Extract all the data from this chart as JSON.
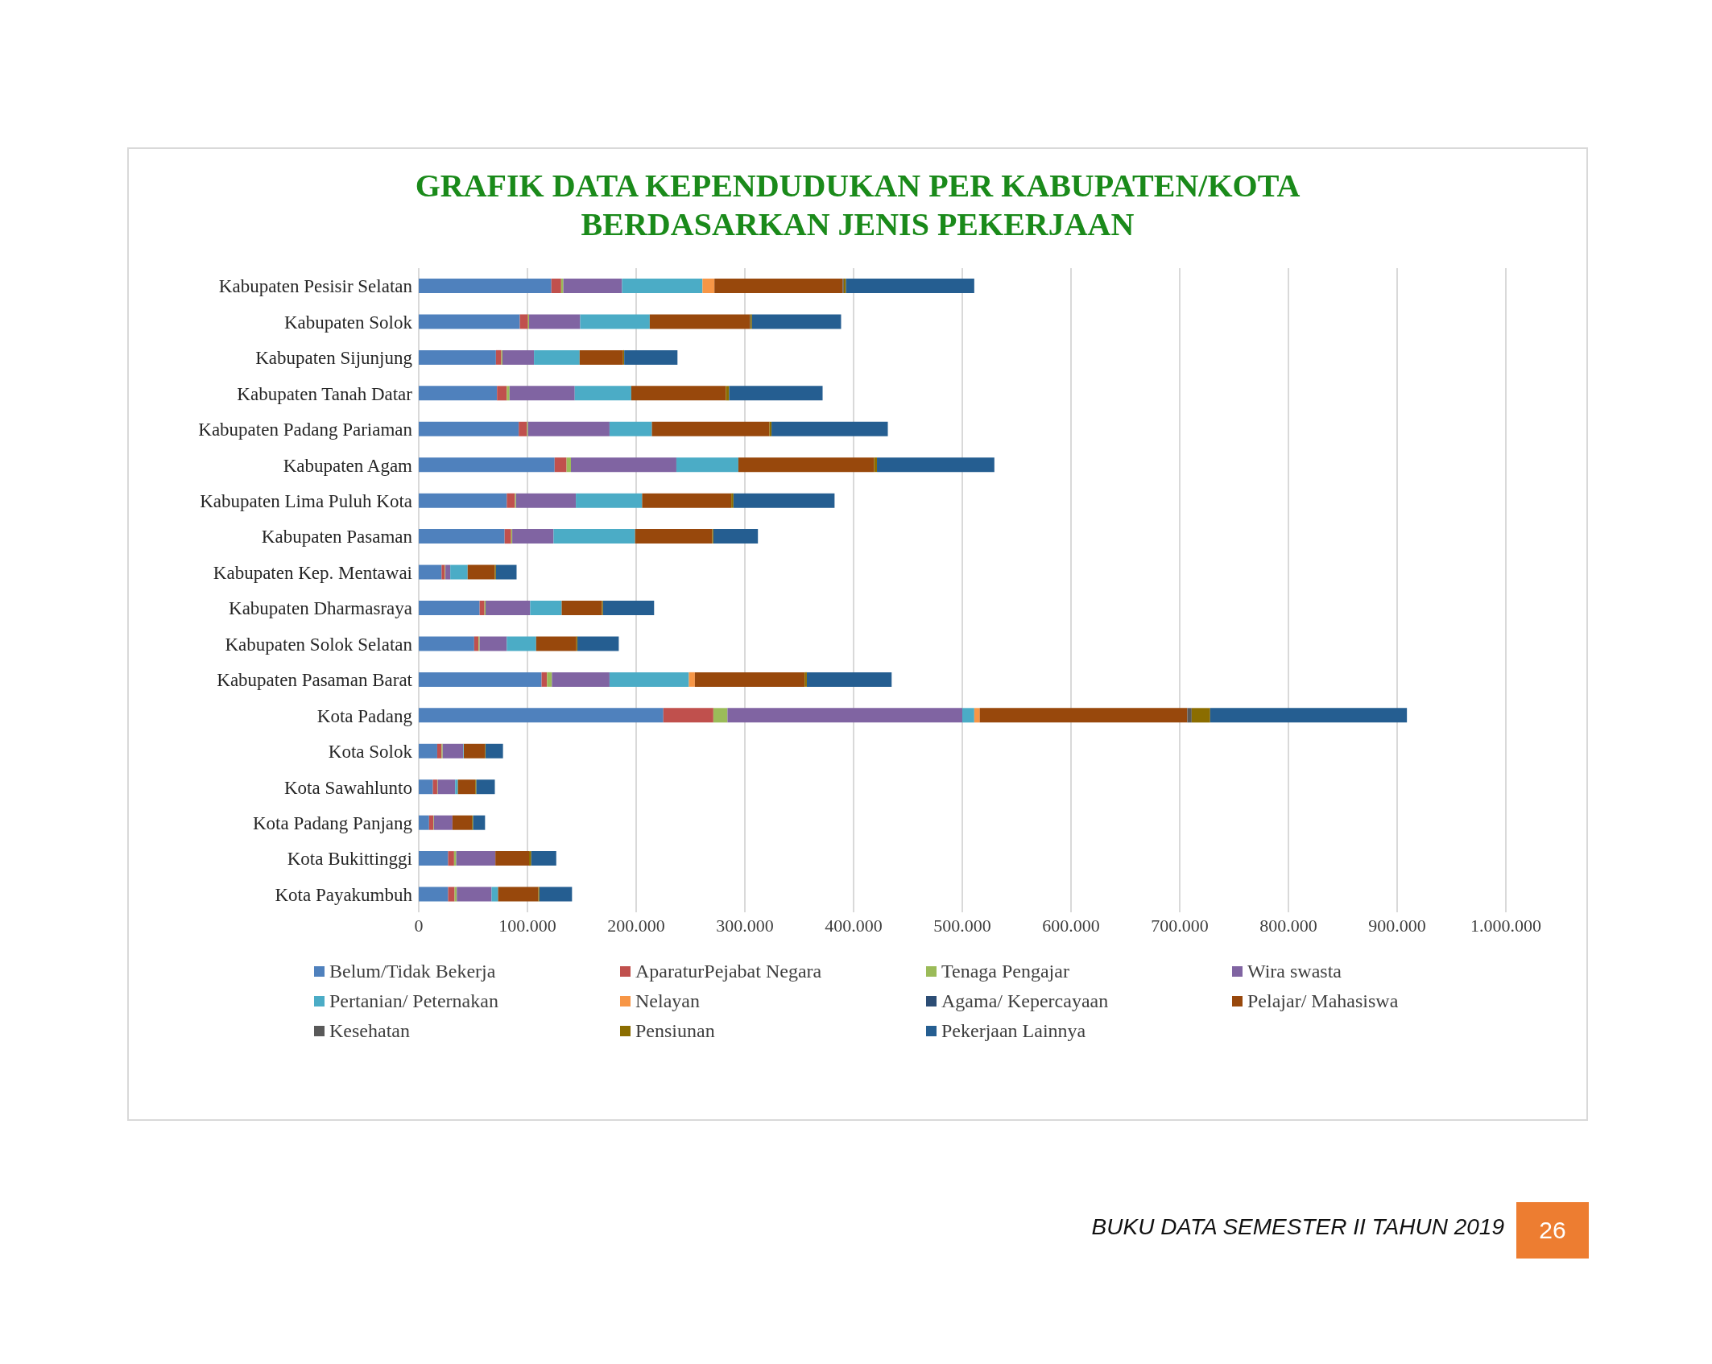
{
  "chart_data": {
    "type": "bar",
    "orientation": "horizontal",
    "stacked": true,
    "title": "GRAFIK DATA KEPENDUDUKAN PER KABUPATEN/KOTA\nBERDASARKAN JENIS PEKERJAAN",
    "categories": [
      "Kabupaten Pesisir Selatan",
      "Kabupaten Solok",
      "Kabupaten Sijunjung",
      "Kabupaten Tanah Datar",
      "Kabupaten Padang Pariaman",
      "Kabupaten Agam",
      "Kabupaten Lima Puluh Kota",
      "Kabupaten Pasaman",
      "Kabupaten Kep. Mentawai",
      "Kabupaten Dharmasraya",
      "Kabupaten Solok Selatan",
      "Kabupaten Pasaman Barat",
      "Kota Padang",
      "Kota Solok",
      "Kota Sawahlunto",
      "Kota Padang Panjang",
      "Kota Bukittinggi",
      "Kota Payakumbuh"
    ],
    "series": [
      {
        "name": "Belum/Tidak Bekerja",
        "color": "#4f81bd",
        "values": [
          122000,
          93000,
          71000,
          72000,
          92000,
          125000,
          81000,
          79000,
          21000,
          56000,
          51000,
          113000,
          225000,
          17000,
          13000,
          9500,
          27000,
          27000
        ]
      },
      {
        "name": "AparaturPejabat Negara",
        "color": "#c0504d",
        "values": [
          9000,
          7500,
          5000,
          9000,
          7500,
          11000,
          7500,
          6000,
          3000,
          4500,
          4000,
          5000,
          46000,
          4000,
          4000,
          4000,
          5500,
          6000
        ]
      },
      {
        "name": "Tenaga Pengajar",
        "color": "#9bbb59",
        "values": [
          2000,
          1000,
          1000,
          2500,
          1000,
          4000,
          1000,
          1000,
          500,
          1000,
          1000,
          4500,
          13000,
          1000,
          500,
          500,
          2000,
          2000
        ]
      },
      {
        "name": "Wira swasta",
        "color": "#8064a2",
        "values": [
          54000,
          47000,
          29000,
          60000,
          75000,
          97000,
          55000,
          38000,
          4500,
          41000,
          25000,
          53000,
          216000,
          19000,
          16000,
          17000,
          36000,
          32000
        ]
      },
      {
        "name": "Pertanian/ Peternakan",
        "color": "#4bacc6",
        "values": [
          74000,
          64000,
          42000,
          52000,
          39000,
          57000,
          61000,
          75000,
          16000,
          29000,
          27000,
          73000,
          11000,
          500,
          2500,
          0,
          0,
          6000
        ]
      },
      {
        "name": "Nelayan",
        "color": "#f79646",
        "values": [
          11000,
          0,
          0,
          0,
          0,
          0,
          0,
          0,
          0,
          0,
          0,
          5500,
          5000,
          0,
          0,
          0,
          0,
          0
        ]
      },
      {
        "name": "Agama/ Kepercayaan",
        "color": "#2c4d75",
        "values": [
          0,
          0,
          0,
          0,
          0,
          0,
          0,
          0,
          0,
          0,
          0,
          0,
          0,
          0,
          0,
          0,
          0,
          0
        ]
      },
      {
        "name": "Pelajar/ Mahasiswa",
        "color": "#98480c",
        "values": [
          118000,
          92000,
          40000,
          87000,
          108000,
          125000,
          82000,
          71000,
          25000,
          37000,
          37000,
          101000,
          191000,
          19500,
          16000,
          18000,
          31000,
          37000
        ]
      },
      {
        "name": "Kesehatan",
        "color": "#595959",
        "values": [
          1000,
          500,
          0,
          0,
          0,
          0,
          0,
          0,
          0,
          0,
          0,
          0,
          4000,
          0,
          0,
          0,
          0,
          0
        ]
      },
      {
        "name": "Pensiunan",
        "color": "#8b6d00",
        "values": [
          2000,
          1500,
          1000,
          3000,
          2000,
          2500,
          2000,
          1000,
          1000,
          1000,
          1000,
          2000,
          17000,
          500,
          1000,
          1000,
          2000,
          1000
        ]
      },
      {
        "name": "Pekerjaan Lainnya",
        "color": "#255e91",
        "values": [
          118000,
          82000,
          49000,
          86000,
          107000,
          108000,
          93000,
          41000,
          19000,
          47000,
          38000,
          78000,
          181000,
          16000,
          17000,
          11000,
          23000,
          30000
        ]
      }
    ],
    "xlim": [
      0,
      1000000
    ],
    "xticks": [
      0,
      {
        "value": 100000,
        "label": "100.000"
      },
      {
        "value": 200000,
        "label": "200.000"
      },
      {
        "value": 300000,
        "label": "300.000"
      },
      {
        "value": 400000,
        "label": "400.000"
      },
      {
        "value": 500000,
        "label": "500.000"
      },
      {
        "value": 600000,
        "label": "600.000"
      },
      {
        "value": 700000,
        "label": "700.000"
      },
      {
        "value": 800000,
        "label": "800.000"
      },
      {
        "value": 900000,
        "label": "900.000"
      },
      {
        "value": 1000000,
        "label": "1.000.000"
      }
    ],
    "grid": "x",
    "legend": "bottom",
    "annotations": [
      "BUKU DATA SEMESTER II TAHUN 2019",
      "26"
    ]
  }
}
